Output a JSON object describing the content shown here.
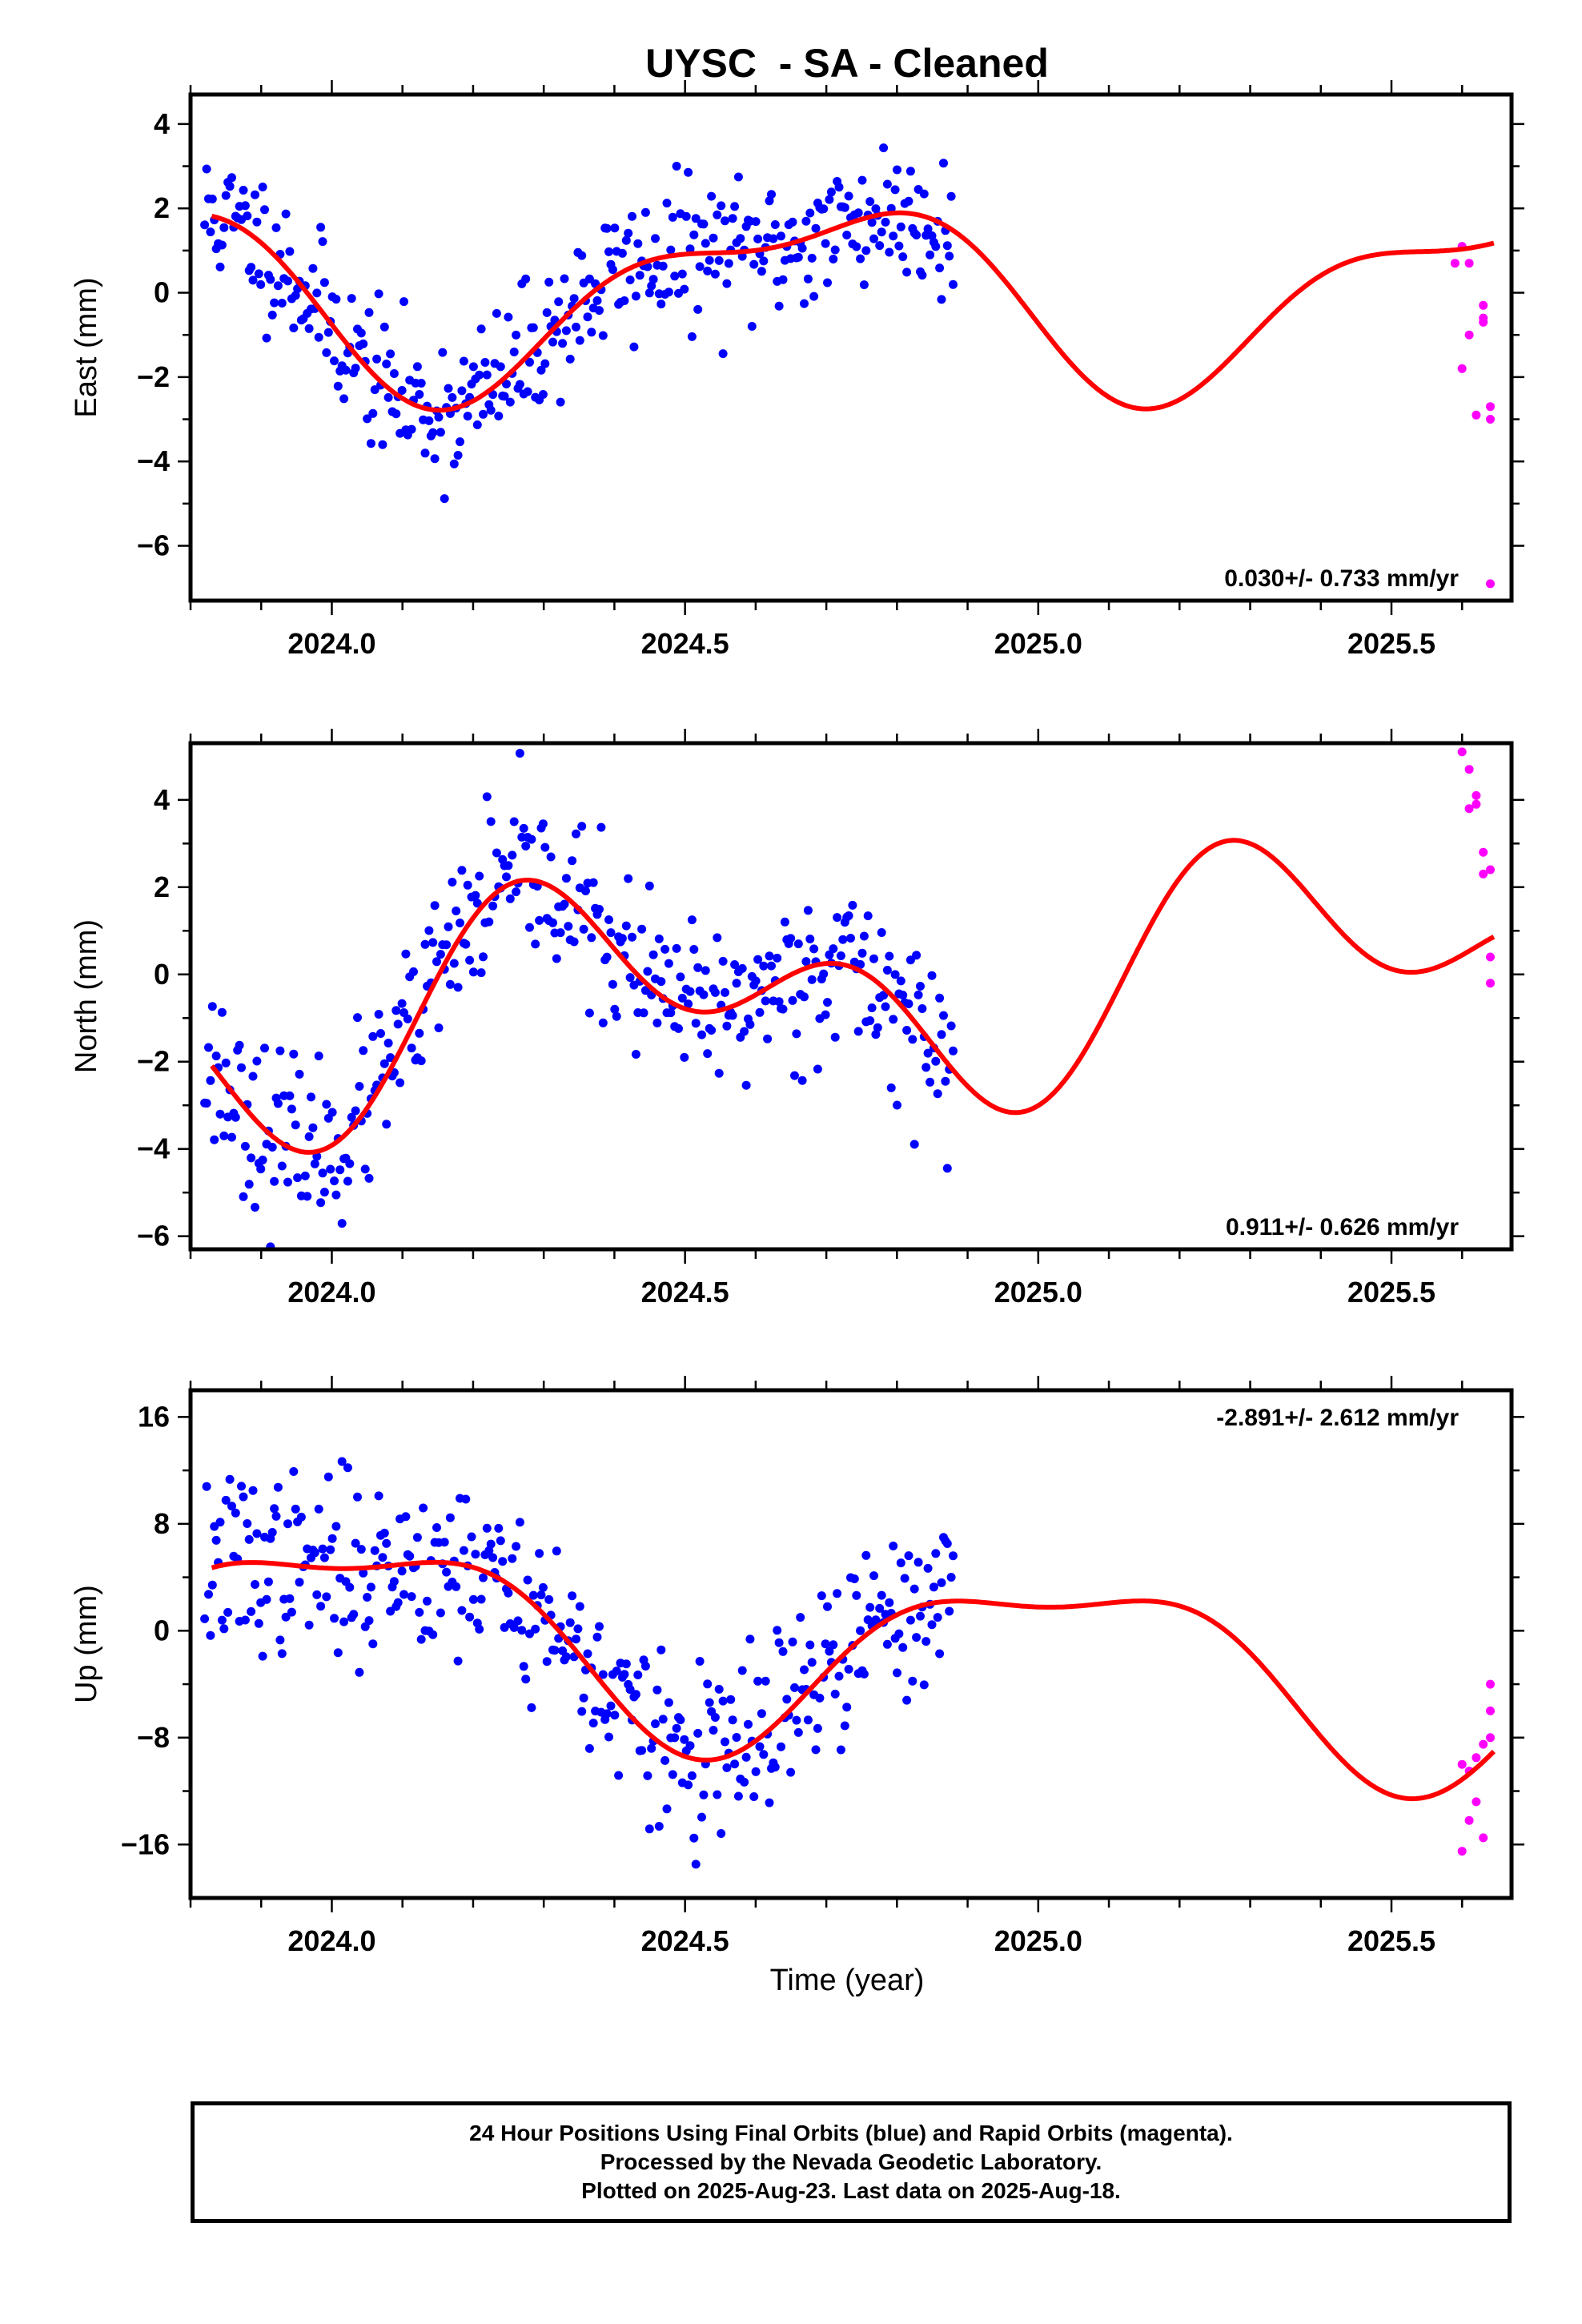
{
  "title": "UYSC  - SA - Cleaned",
  "xlabel": "Time (year)",
  "colors": {
    "final": "#0000ff",
    "rapid": "#ff00ff",
    "model": "#ff0000",
    "axis": "#000000"
  },
  "footer": {
    "line1": "24 Hour Positions Using Final Orbits (blue) and Rapid Orbits (magenta).",
    "line2": "Processed by the Nevada Geodetic Laboratory.",
    "line3": "Plotted on 2025-Aug-23. Last data on 2025-Aug-18."
  },
  "chart_data": [
    {
      "type": "scatter",
      "panel": "east",
      "ylabel": "East (mm)",
      "xlim": [
        2023.8,
        2025.67
      ],
      "ylim": [
        -7.3,
        4.7
      ],
      "xticks": [
        2024.0,
        2024.5,
        2025.0,
        2025.5
      ],
      "xtick_labels": [
        "2024.0",
        "2024.5",
        "2025.0",
        "2025.5"
      ],
      "yticks": [
        4,
        2,
        0,
        -2,
        -4,
        -6
      ],
      "ytick_labels": [
        "4",
        "2",
        "0",
        "−2",
        "−4",
        "−6"
      ],
      "rate_label": "0.030+/- 0.733 mm/yr",
      "rate_position": "bottom-right",
      "model": {
        "offset": 0.0,
        "trend": 0.03,
        "ref": 2024.7,
        "a1": -0.22,
        "b1": 2.0,
        "a2": 0.6,
        "b2": -0.55
      },
      "final_range": [
        2023.82,
        2024.88
      ],
      "final_noise": 0.85,
      "final_seed": 11,
      "series": [
        {
          "name": "Rapid Orbits",
          "color": "#ff00ff",
          "x": [
            2025.59,
            2025.6,
            2025.6,
            2025.61,
            2025.61,
            2025.62,
            2025.63,
            2025.63,
            2025.63,
            2025.64,
            2025.64,
            2025.64
          ],
          "y": [
            0.7,
            1.1,
            -1.8,
            0.7,
            -1.0,
            -2.9,
            -0.7,
            -0.3,
            -0.6,
            -2.7,
            -3.0,
            -6.9
          ]
        }
      ]
    },
    {
      "type": "scatter",
      "panel": "north",
      "ylabel": "North (mm)",
      "xlim": [
        2023.8,
        2025.67
      ],
      "ylim": [
        -6.3,
        5.3
      ],
      "xticks": [
        2024.0,
        2024.5,
        2025.0,
        2025.5
      ],
      "xtick_labels": [
        "2024.0",
        "2024.5",
        "2025.0",
        "2025.5"
      ],
      "yticks": [
        4,
        2,
        0,
        -2,
        -4,
        -6
      ],
      "ytick_labels": [
        "4",
        "2",
        "0",
        "−2",
        "−4",
        "−6"
      ],
      "rate_label": "0.911+/- 0.626 mm/yr",
      "rate_position": "bottom-right",
      "model": {
        "offset": -0.35,
        "trend": 0.911,
        "ref": 2024.7,
        "a1": -1.65,
        "b1": -0.75,
        "a2": 0.85,
        "b2": 1.35
      },
      "final_range": [
        2023.82,
        2024.88
      ],
      "final_noise": 0.95,
      "final_seed": 23,
      "series": [
        {
          "name": "Rapid Orbits",
          "color": "#ff00ff",
          "x": [
            2025.6,
            2025.61,
            2025.61,
            2025.62,
            2025.62,
            2025.63,
            2025.63,
            2025.64,
            2025.64,
            2025.64
          ],
          "y": [
            5.1,
            4.7,
            3.8,
            3.9,
            4.1,
            2.8,
            2.3,
            2.4,
            0.4,
            -0.2
          ]
        }
      ]
    },
    {
      "type": "scatter",
      "panel": "up",
      "ylabel": "Up (mm)",
      "xlim": [
        2023.8,
        2025.67
      ],
      "ylim": [
        -20,
        18
      ],
      "xticks": [
        2024.0,
        2024.5,
        2025.0,
        2025.5
      ],
      "xtick_labels": [
        "2024.0",
        "2024.5",
        "2025.0",
        "2025.5"
      ],
      "yticks": [
        16,
        8,
        0,
        -8,
        -16
      ],
      "ytick_labels": [
        "16",
        "8",
        "0",
        "−8",
        "−16"
      ],
      "rate_label": "-2.891+/- 2.612 mm/yr",
      "rate_position": "top-right",
      "model": {
        "offset": -1.4,
        "trend": -2.891,
        "ref": 2024.7,
        "a1": 5.6,
        "b1": -3.2,
        "a2": 1.8,
        "b2": 1.5
      },
      "final_range": [
        2023.82,
        2024.88
      ],
      "final_noise": 3.3,
      "final_seed": 37,
      "series": [
        {
          "name": "Rapid Orbits",
          "color": "#ff00ff",
          "x": [
            2025.6,
            2025.6,
            2025.61,
            2025.61,
            2025.62,
            2025.62,
            2025.63,
            2025.63,
            2025.64,
            2025.64,
            2025.64
          ],
          "y": [
            -10.0,
            -16.5,
            -14.2,
            -10.5,
            -12.8,
            -9.5,
            -8.5,
            -15.5,
            -8.0,
            -6.0,
            -4.0
          ]
        }
      ]
    }
  ]
}
